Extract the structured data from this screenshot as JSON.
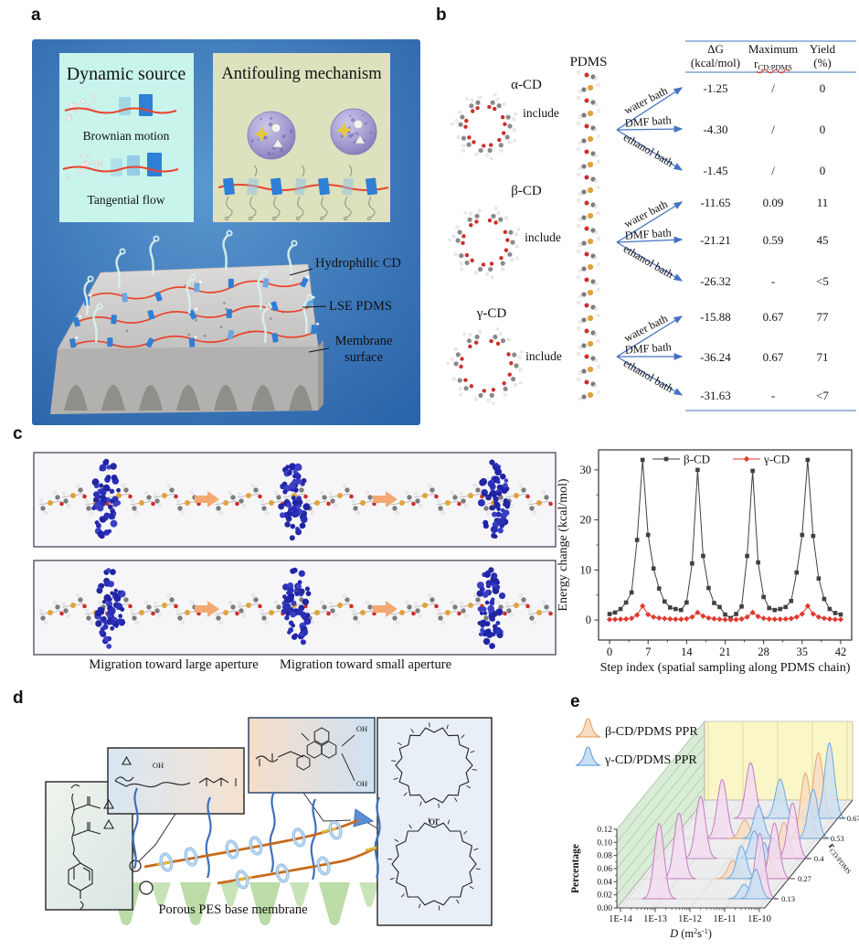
{
  "figure": {
    "panel_labels": {
      "a": "a",
      "b": "b",
      "c": "c",
      "d": "d",
      "e": "e"
    }
  },
  "panels": {
    "a": {
      "dynamic_source": {
        "title": "Dynamic source",
        "caption1": "Brownian motion",
        "caption2": "Tangential flow"
      },
      "antifouling": {
        "title": "Antifouling mechanism"
      },
      "annotations": {
        "hydrophilic_cd": "Hydrophilic CD",
        "lse_pdms": "LSE PDMS",
        "membrane_surface_1": "Membrane",
        "membrane_surface_2": "surface"
      }
    },
    "b": {
      "pdms_label": "PDMS",
      "include_label": "include",
      "table": {
        "col_dg": {
          "l1": "ΔG",
          "l2": "(kcal/mol)"
        },
        "col_r": {
          "l1": "Maximum",
          "r_main": "r",
          "r_sub": "CD:PDMS"
        },
        "col_yield": {
          "l1": "Yield",
          "l2": "(%)"
        },
        "groups": [
          {
            "cd": "α-CD",
            "rows": [
              {
                "bath": "water bath",
                "dg": "-1.25",
                "r": "/",
                "y": "0"
              },
              {
                "bath": "DMF bath",
                "dg": "-4.30",
                "r": "/",
                "y": "0"
              },
              {
                "bath": "ethanol bath",
                "dg": "-1.45",
                "r": "/",
                "y": "0"
              }
            ]
          },
          {
            "cd": "β-CD",
            "rows": [
              {
                "bath": "water bath",
                "dg": "-11.65",
                "r": "0.09",
                "y": "11"
              },
              {
                "bath": "DMF bath",
                "dg": "-21.21",
                "r": "0.59",
                "y": "45"
              },
              {
                "bath": "ethanol bath",
                "dg": "-26.32",
                "r": "-",
                "y": "<5"
              }
            ]
          },
          {
            "cd": "γ-CD",
            "rows": [
              {
                "bath": "water bath",
                "dg": "-15.88",
                "r": "0.67",
                "y": "77"
              },
              {
                "bath": "DMF bath",
                "dg": "-36.24",
                "r": "0.67",
                "y": "71"
              },
              {
                "bath": "ethanol bath",
                "dg": "-31.63",
                "r": "-",
                "y": "<7"
              }
            ]
          }
        ]
      }
    },
    "c": {
      "caption_left": "Migration toward large aperture",
      "caption_right": "Migration toward small aperture"
    },
    "d": {
      "membrane_text": "Porous PES base membrane",
      "or_text": "or",
      "atom_oh": "OH"
    },
    "e": {}
  },
  "chart_data": [
    {
      "type": "line",
      "panel": "c",
      "xlabel": "Step index (spatial sampling along PDMS chain)",
      "ylabel": "Energy change (kcal/mol)",
      "x_start": 0,
      "x_step": 1,
      "xticks": [
        0,
        7,
        14,
        21,
        28,
        35,
        42
      ],
      "yticks": [
        0,
        10,
        20,
        30
      ],
      "xlim": [
        -2,
        44
      ],
      "ylim": [
        -4,
        34
      ],
      "legend_position": "top-center",
      "grid": false,
      "series": [
        {
          "name": "β-CD",
          "color": "#404040",
          "marker": "square",
          "values": [
            1.2,
            1.5,
            2.2,
            3.5,
            5.5,
            16,
            32,
            17,
            10.3,
            6.3,
            3.7,
            2.5,
            2.2,
            2,
            3.5,
            11.3,
            30,
            12.8,
            6.4,
            3.4,
            2.6,
            1.1,
            0.4,
            1.2,
            2.7,
            12.8,
            29.8,
            11.5,
            4.6,
            2.4,
            2,
            2.2,
            2.6,
            3.8,
            9.5,
            17,
            32,
            16.8,
            8.3,
            4.2,
            2.2,
            1.4,
            1.1
          ]
        },
        {
          "name": "γ-CD",
          "color": "#e03a30",
          "marker": "diamond",
          "values": [
            0.1,
            0.12,
            0.15,
            0.2,
            0.35,
            1,
            2.8,
            1.1,
            0.6,
            0.4,
            0.3,
            0.2,
            0.15,
            0.15,
            0.25,
            0.6,
            1.5,
            0.8,
            0.4,
            0.25,
            0.15,
            0.08,
            0.05,
            0.1,
            0.2,
            0.6,
            1.5,
            0.7,
            0.35,
            0.2,
            0.15,
            0.15,
            0.2,
            0.3,
            0.6,
            1.2,
            2.8,
            1.2,
            0.6,
            0.35,
            0.2,
            0.12,
            0.1
          ]
        }
      ]
    },
    {
      "type": "ridgeline-3d",
      "panel": "e",
      "xlabel_parts": [
        {
          "t": "D ",
          "i": 1
        },
        {
          "t": "(m"
        },
        {
          "t": "2",
          "sup": 1
        },
        {
          "t": "s"
        },
        {
          "t": "-1",
          "sup": 1
        },
        {
          "t": ")"
        }
      ],
      "ylabel": "Percentage",
      "zlabel_main": "r",
      "zlabel_sub": "CD/PDMS",
      "xticks": [
        "1E-14",
        "1E-13",
        "1E-12",
        "1E-11",
        "1E-10"
      ],
      "yticks": [
        "0.00",
        "0.02",
        "0.04",
        "0.06",
        "0.08",
        "0.10",
        "0.12"
      ],
      "legend": [
        {
          "label": "β-CD/PDMS PPR",
          "key": "peach"
        },
        {
          "label": "γ-CD/PDMS PPR",
          "key": "blue"
        }
      ],
      "series_colors": {
        "peach": {
          "fill": "#f7dcc3",
          "stroke": "#e7a872"
        },
        "blue": {
          "fill": "#c9e0f4",
          "stroke": "#6fa8dc"
        },
        "pink": {
          "fill": "#f3dbf0",
          "stroke": "#c27ec0"
        }
      },
      "rows": [
        {
          "r": "0.13",
          "peaks": [
            {
              "logD": -13.1,
              "h": 0.115,
              "c": "pink"
            },
            {
              "logD": -10.65,
              "h": 0.022,
              "c": "blue"
            },
            {
              "logD": -10.2,
              "h": 0.1,
              "c": "pink"
            },
            {
              "logD": -10.32,
              "h": 0.045,
              "c": "blue"
            }
          ]
        },
        {
          "r": "0.27",
          "peaks": [
            {
              "logD": -13.0,
              "h": 0.1,
              "c": "pink"
            },
            {
              "logD": -11.45,
              "h": 0.028,
              "c": "peach"
            },
            {
              "logD": -11.2,
              "h": 0.05,
              "c": "blue"
            },
            {
              "logD": -10.55,
              "h": 0.055,
              "c": "blue"
            },
            {
              "logD": -10.4,
              "h": 0.03,
              "c": "peach"
            },
            {
              "logD": -10.25,
              "h": 0.085,
              "c": "pink"
            }
          ]
        },
        {
          "r": "0.4",
          "peaks": [
            {
              "logD": -12.85,
              "h": 0.095,
              "c": "pink"
            },
            {
              "logD": -11.3,
              "h": 0.042,
              "c": "blue"
            },
            {
              "logD": -10.75,
              "h": 0.03,
              "c": "blue"
            },
            {
              "logD": -10.45,
              "h": 0.055,
              "c": "peach"
            },
            {
              "logD": -10.2,
              "h": 0.085,
              "c": "pink"
            }
          ]
        },
        {
          "r": "0.53",
          "peaks": [
            {
              "logD": -12.7,
              "h": 0.09,
              "c": "pink"
            },
            {
              "logD": -12.05,
              "h": 0.028,
              "c": "peach"
            },
            {
              "logD": -11.65,
              "h": 0.05,
              "c": "blue"
            },
            {
              "logD": -10.3,
              "h": 0.1,
              "c": "peach"
            },
            {
              "logD": -10.08,
              "h": 0.075,
              "c": "blue"
            }
          ]
        },
        {
          "r": "0.67",
          "peaks": [
            {
              "logD": -12.35,
              "h": 0.085,
              "c": "pink"
            },
            {
              "logD": -11.5,
              "h": 0.06,
              "c": "blue"
            },
            {
              "logD": -10.4,
              "h": 0.1,
              "c": "peach"
            },
            {
              "logD": -10.08,
              "h": 0.115,
              "c": "blue"
            }
          ]
        }
      ]
    }
  ],
  "colors": {
    "panel_a_bg_center": "#5b97cf",
    "panel_a_bg_edge": "#2b65a9",
    "dynamic_box": "#c9f4ec",
    "antifouling_box": "#dde1bd",
    "arrow_blue": "#4472c4",
    "table_line": "#6b8fc9",
    "red_chain": "#e8432e",
    "cd_blue": "#2f7fd6",
    "wall_green": "#d9ecd5",
    "wall_yellow": "#faf6c8",
    "floor_gray": "#ededed"
  }
}
